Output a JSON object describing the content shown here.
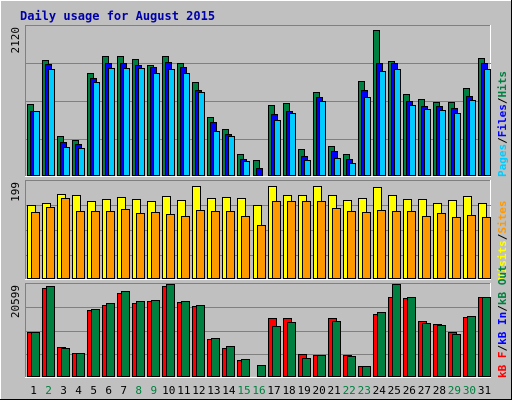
{
  "chart_data": {
    "type": "bar",
    "title": "Daily usage for August 2015",
    "categories": [
      "1",
      "2",
      "3",
      "4",
      "5",
      "6",
      "7",
      "8",
      "9",
      "10",
      "11",
      "12",
      "13",
      "14",
      "15",
      "16",
      "17",
      "18",
      "19",
      "20",
      "21",
      "22",
      "23",
      "24",
      "25",
      "26",
      "27",
      "28",
      "29",
      "30",
      "31"
    ],
    "weekend_days": [
      "2",
      "8",
      "9",
      "15",
      "16",
      "22",
      "23",
      "29",
      "30"
    ],
    "panels": [
      {
        "id": "top",
        "ylim": [
          0,
          2120
        ],
        "max_label": "2120",
        "legend": [
          {
            "name": "Pages",
            "color": "#00ccff"
          },
          {
            "name": "Files",
            "color": "#0000ff"
          },
          {
            "name": "Hits",
            "color": "#008040"
          }
        ],
        "series": [
          {
            "name": "Hits",
            "color": "#008040",
            "values": [
              1015,
              1646,
              566,
              512,
              1456,
              1690,
              1690,
              1652,
              1563,
              1690,
              1602,
              1326,
              828,
              671,
              314,
              226,
              998,
              1034,
              379,
              1184,
              426,
              310,
              1341,
              2063,
              1631,
              1165,
              1093,
              1043,
              1041,
              1237,
              1665
            ]
          },
          {
            "name": "Files",
            "color": "#0000ff",
            "values": [
              924,
              1579,
              474,
              453,
              1382,
              1596,
              1596,
              1574,
              1540,
              1609,
              1540,
              1213,
              758,
              597,
              246,
              112,
              874,
              917,
              282,
              1116,
              348,
              242,
              1212,
              1590,
              1599,
              1067,
              996,
              992,
              963,
              1137,
              1590
            ]
          },
          {
            "name": "Pages",
            "color": "#00ccff",
            "values": [
              915,
              1507,
              411,
              391,
              1324,
              1522,
              1522,
              1520,
              1449,
              1518,
              1453,
              1190,
              631,
              568,
              205,
              0,
              786,
              893,
              221,
              1058,
              261,
              177,
              1114,
              1478,
              1507,
              1000,
              941,
              926,
              895,
              1072,
              1507
            ]
          }
        ]
      },
      {
        "id": "middle",
        "ylim": [
          0,
          199
        ],
        "max_label": "199",
        "legend": [
          {
            "name": "Visits",
            "color": "#ffff00"
          },
          {
            "name": "Sites",
            "color": "#ff9900"
          }
        ],
        "series": [
          {
            "name": "Visits",
            "color": "#ffff00",
            "values": [
              150,
              155,
              172,
              170,
              159,
              162,
              166,
              162,
              159,
              169,
              160,
              188,
              164,
              166,
              165,
              151,
              189,
              170,
              171,
              189,
              171,
              161,
              165,
              186,
              171,
              162,
              162,
              155,
              161,
              169,
              155
            ]
          },
          {
            "name": "Sites",
            "color": "#ff9900",
            "values": [
              136,
              146,
              164,
              138,
              138,
              138,
              142,
              135,
              136,
              133,
              128,
              141,
              138,
              138,
              128,
              109,
              159,
              158,
              158,
              159,
              144,
              138,
              137,
              141,
              138,
              138,
              127,
              135,
              125,
              130,
              125
            ]
          }
        ]
      },
      {
        "id": "bottom",
        "ylim": [
          0,
          20599
        ],
        "max_label": "20599",
        "legend": [
          {
            "name": "kB F",
            "color": "#ff0000"
          },
          {
            "name": "kB In",
            "color": "#0000ff"
          },
          {
            "name": "kB Out",
            "color": "#008040"
          }
        ],
        "series": [
          {
            "name": "kB F",
            "color": "#ff0000",
            "values": [
              10000,
              19700,
              6700,
              5400,
              14900,
              16000,
              18700,
              16500,
              16900,
              20100,
              16600,
              15800,
              8400,
              6500,
              3700,
              0,
              13000,
              13000,
              5000,
              4900,
              13000,
              4900,
              2400,
              14000,
              17700,
              17600,
              12400,
              11800,
              10000,
              13400,
              17800
            ]
          },
          {
            "name": "kB Out",
            "color": "#008040",
            "values": [
              10000,
              20200,
              6500,
              5300,
              15100,
              16400,
              19000,
              16900,
              17100,
              20500,
              16800,
              16000,
              8700,
              6800,
              3900,
              2700,
              11400,
              12100,
              4300,
              4900,
              12400,
              4600,
              2400,
              14300,
              20600,
              17800,
              11900,
              11600,
              9600,
              13500,
              17800
            ]
          }
        ]
      }
    ]
  }
}
